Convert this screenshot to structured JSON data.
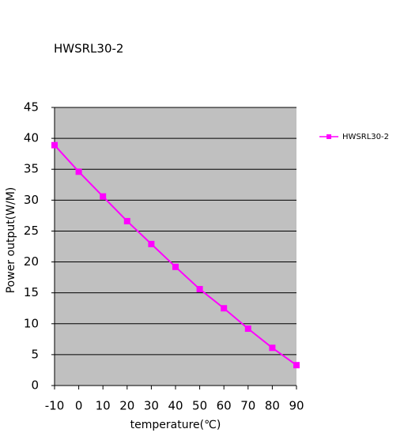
{
  "chart_data": {
    "type": "line",
    "title": "HWSRL30-2",
    "x_label": "temperature(℃)",
    "y_label": "Power output(W/M)",
    "x": [
      -10,
      0,
      10,
      20,
      30,
      40,
      50,
      60,
      70,
      80,
      90
    ],
    "series": [
      {
        "name": "HWSRL30-2",
        "color": "#ff00ff",
        "values": [
          38.9,
          34.6,
          30.6,
          26.6,
          22.9,
          19.2,
          15.6,
          12.5,
          9.2,
          6.1,
          3.3
        ]
      }
    ],
    "xlim": [
      -10,
      90
    ],
    "xticks": [
      -10,
      0,
      10,
      20,
      30,
      40,
      50,
      60,
      70,
      80,
      90
    ],
    "ylim": [
      0,
      45
    ],
    "yticks": [
      0,
      5,
      10,
      15,
      20,
      25,
      30,
      35,
      40,
      45
    ],
    "grid": true,
    "legend": "right"
  }
}
